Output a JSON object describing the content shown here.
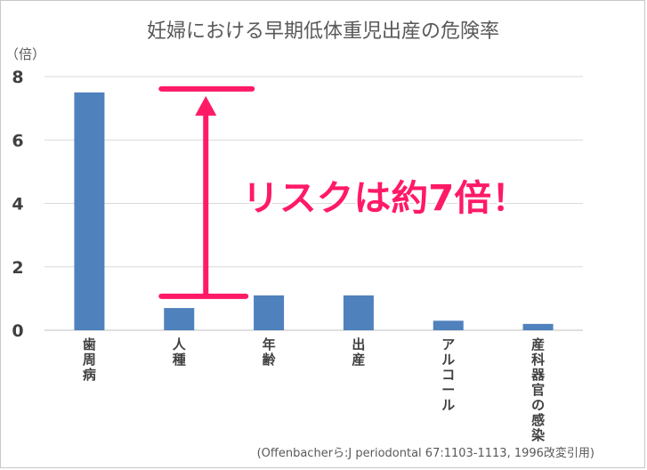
{
  "chart_data": {
    "type": "bar",
    "title": "妊婦における早期低体重児出産の危険率",
    "ylabel": "（倍）",
    "ylim": [
      0,
      8
    ],
    "yticks": [
      0,
      2,
      4,
      6,
      8
    ],
    "grid": true,
    "categories": [
      "歯周病",
      "人種",
      "年齢",
      "出産",
      "アルコール",
      "産科器官の感染"
    ],
    "values": [
      7.5,
      0.7,
      1.1,
      1.1,
      0.3,
      0.2
    ],
    "bar_color": "#4f81bd",
    "annotation": {
      "text": "リスクは約7倍！",
      "color": "#ff1a66",
      "text_fill": "#ff1a66",
      "text_stroke": "#ffffff",
      "from_value": 1.1,
      "to_value": 7.5
    },
    "source": "(Offenbacherら:J  periodontal 67:1103-1113, 1996改変引用)"
  }
}
